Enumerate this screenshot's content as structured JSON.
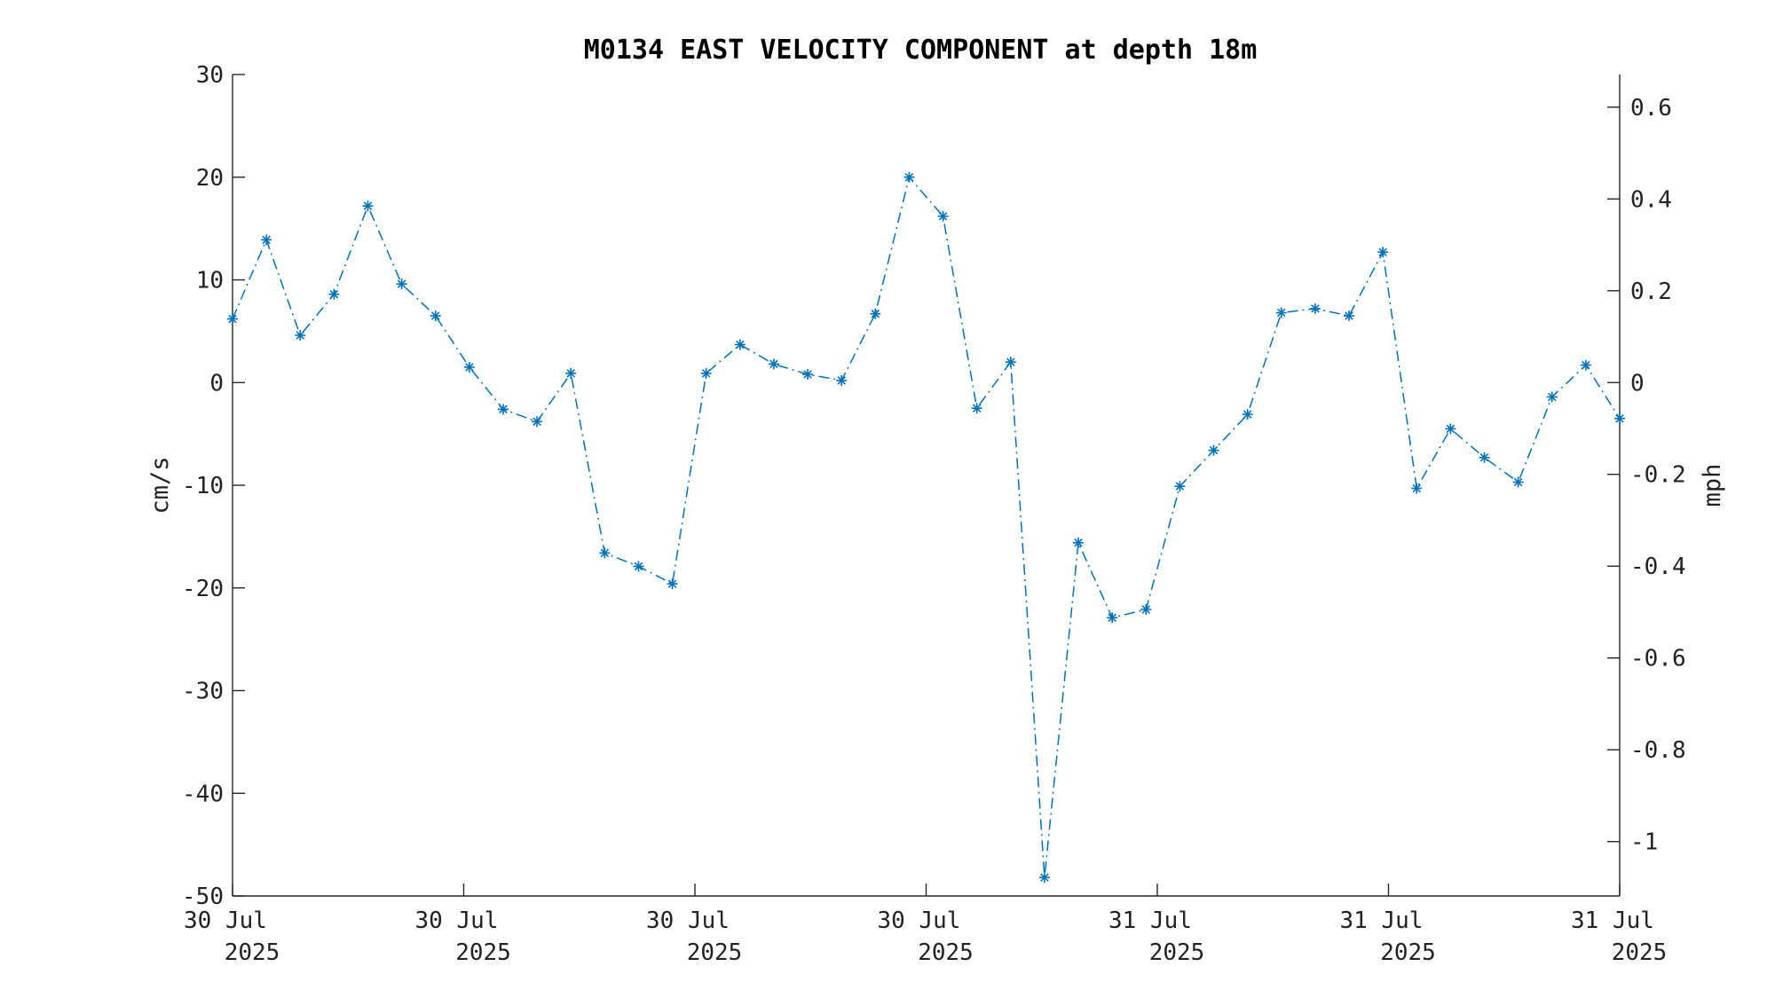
{
  "chart_data": {
    "type": "line",
    "title": "M0134 EAST VELOCITY COMPONENT at depth 18m",
    "ylabel": "cm/s",
    "ylabel_right": "mph",
    "ylim": [
      -50,
      30
    ],
    "yticks": [
      30,
      20,
      10,
      0,
      -10,
      -20,
      -30,
      -40,
      -50
    ],
    "ylim_right": [
      -1.1185,
      0.6711
    ],
    "yticks_right": [
      0.6,
      0.4,
      0.2,
      0,
      -0.2,
      -0.4,
      -0.6,
      -0.8,
      -1
    ],
    "xticks": [
      {
        "label_line1": "30 Jul",
        "label_line2": "2025"
      },
      {
        "label_line1": "30 Jul",
        "label_line2": "2025"
      },
      {
        "label_line1": "30 Jul",
        "label_line2": "2025"
      },
      {
        "label_line1": "30 Jul",
        "label_line2": "2025"
      },
      {
        "label_line1": "31 Jul",
        "label_line2": "2025"
      },
      {
        "label_line1": "31 Jul",
        "label_line2": "2025"
      },
      {
        "label_line1": "31 Jul",
        "label_line2": "2025"
      }
    ],
    "grid": false,
    "series": [
      {
        "color": "#0072BD",
        "line_style": "dash-dot",
        "marker": "asterisk",
        "values": [
          6.2,
          13.9,
          4.6,
          8.6,
          17.2,
          9.6,
          6.5,
          1.5,
          -2.6,
          -3.8,
          0.9,
          -16.6,
          -17.9,
          -19.6,
          0.9,
          3.7,
          1.8,
          0.8,
          0.2,
          6.7,
          20.0,
          16.2,
          -2.5,
          2.0,
          -48.2,
          -15.6,
          -22.9,
          -22.1,
          -10.1,
          -6.6,
          -3.1,
          6.8,
          7.2,
          6.5,
          12.7,
          -10.3,
          -4.5,
          -7.3,
          -9.7,
          -1.4,
          1.7,
          -3.5
        ]
      }
    ]
  }
}
